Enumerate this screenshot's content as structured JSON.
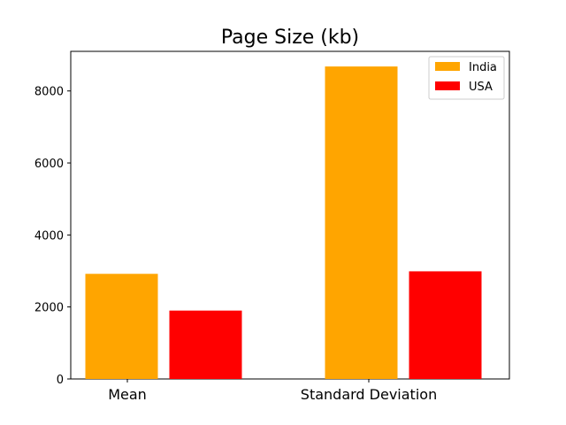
{
  "chart_data": {
    "type": "bar",
    "title": "Page Size (kb)",
    "xlabel": "",
    "ylabel": "",
    "categories": [
      "Mean",
      "Standard Deviation"
    ],
    "series": [
      {
        "name": "India",
        "values": [
          2920,
          8680
        ],
        "color": "#ffa500"
      },
      {
        "name": "USA",
        "values": [
          1900,
          2990
        ],
        "color": "#ff0000"
      }
    ],
    "ylim": [
      0,
      9100
    ],
    "yticks": [
      0,
      2000,
      4000,
      6000,
      8000
    ],
    "grid": false,
    "legend_position": "top-right"
  }
}
